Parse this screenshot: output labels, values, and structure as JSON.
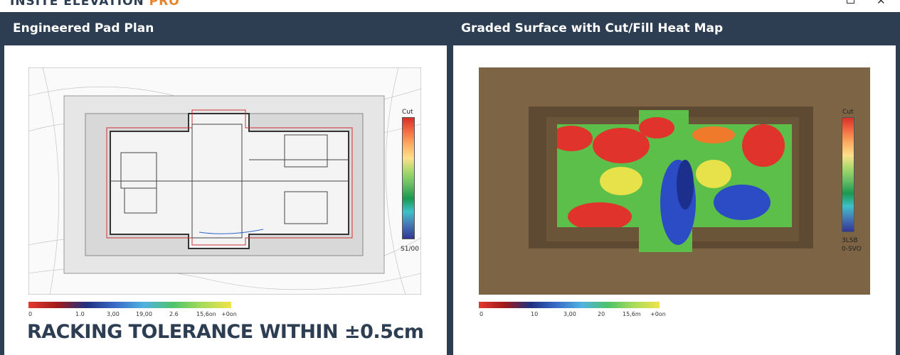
{
  "window": {
    "title": "INSITE ELEVATION",
    "title_accent": "PRO"
  },
  "panels": [
    {
      "title": "Engineered Pad Plan",
      "legend": {
        "top": "Cut",
        "bottom": [
          "S1/00"
        ]
      },
      "scale_labels": [
        "0",
        "1.0",
        "3,00",
        "19,00",
        "2.6",
        "15,6on",
        "+0on"
      ],
      "caption": "RACKING TOLERANCE WITHIN ±0.5cm"
    },
    {
      "title": "Graded Surface with Cut/Fill Heat Map",
      "legend": {
        "top": "Cut",
        "bottom": [
          "3LSB",
          "0-SVO"
        ]
      },
      "scale_labels": [
        "0",
        "10",
        "3,00",
        "20",
        "15,6m",
        "+0on"
      ]
    }
  ]
}
